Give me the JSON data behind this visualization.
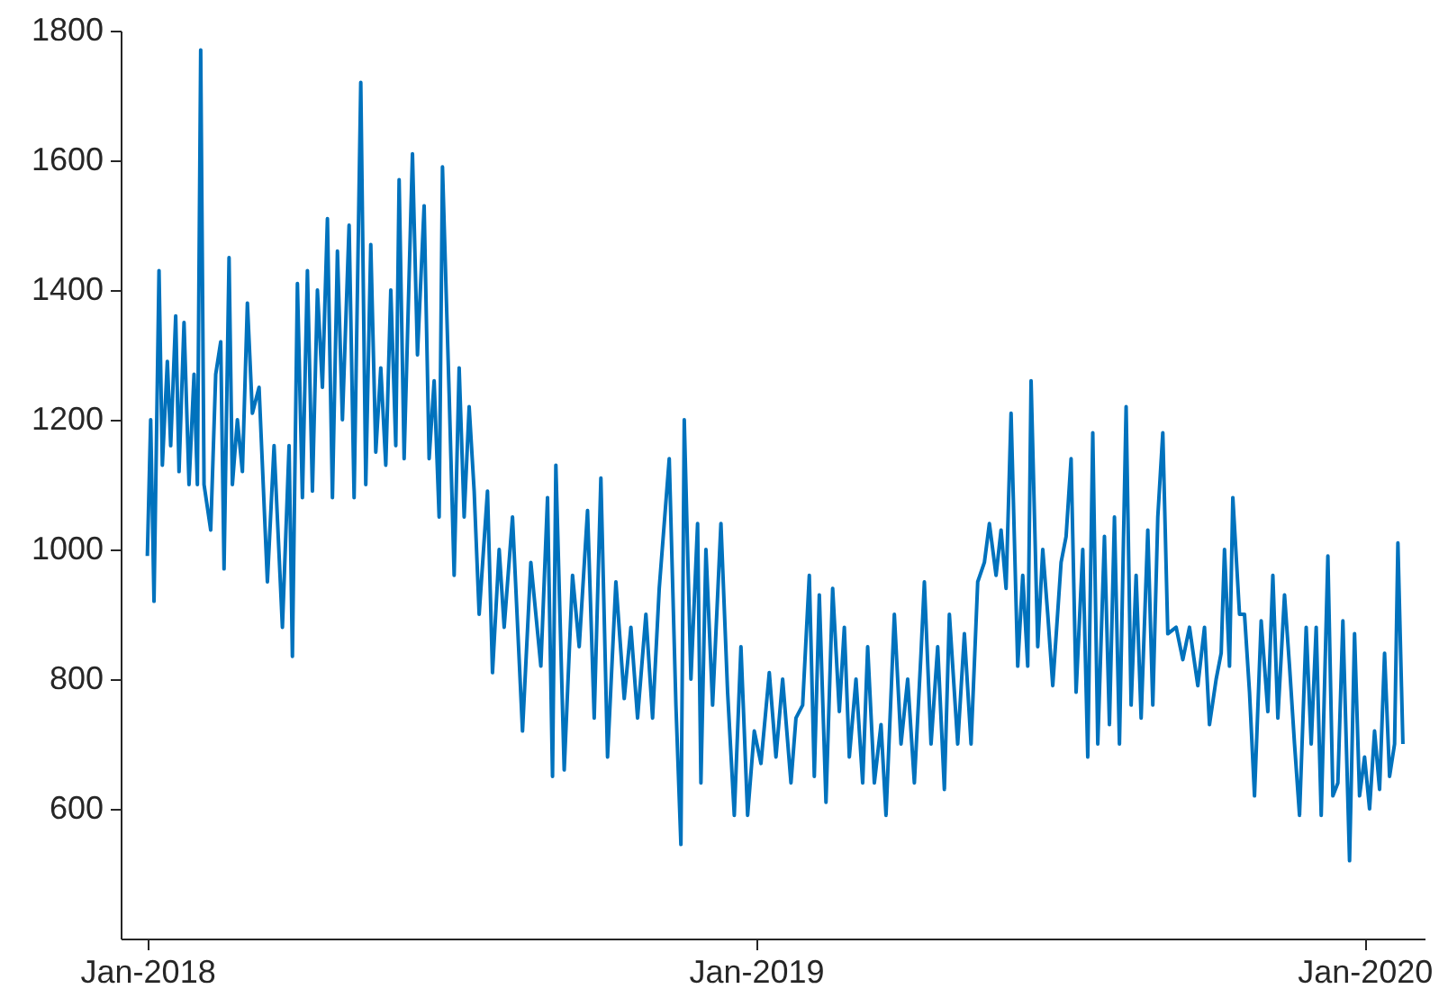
{
  "chart_data": {
    "type": "line",
    "x": [
      "2018-01-01",
      "2018-01-03",
      "2018-01-05",
      "2018-01-08",
      "2018-01-10",
      "2018-01-13",
      "2018-01-15",
      "2018-01-18",
      "2018-01-20",
      "2018-01-23",
      "2018-01-26",
      "2018-01-29",
      "2018-01-31",
      "2018-02-02",
      "2018-02-04",
      "2018-02-08",
      "2018-02-11",
      "2018-02-14",
      "2018-02-16",
      "2018-02-19",
      "2018-02-21",
      "2018-02-24",
      "2018-02-27",
      "2018-03-02",
      "2018-03-05",
      "2018-03-09",
      "2018-03-14",
      "2018-03-18",
      "2018-03-23",
      "2018-03-27",
      "2018-03-29",
      "2018-04-01",
      "2018-04-04",
      "2018-04-07",
      "2018-04-10",
      "2018-04-13",
      "2018-04-16",
      "2018-04-19",
      "2018-04-22",
      "2018-04-25",
      "2018-04-28",
      "2018-05-02",
      "2018-05-05",
      "2018-05-09",
      "2018-05-12",
      "2018-05-15",
      "2018-05-18",
      "2018-05-21",
      "2018-05-24",
      "2018-05-27",
      "2018-05-30",
      "2018-06-01",
      "2018-06-04",
      "2018-06-09",
      "2018-06-12",
      "2018-06-16",
      "2018-06-19",
      "2018-06-22",
      "2018-06-25",
      "2018-06-27",
      "2018-07-01",
      "2018-07-04",
      "2018-07-07",
      "2018-07-10",
      "2018-07-13",
      "2018-07-16",
      "2018-07-19",
      "2018-07-24",
      "2018-07-27",
      "2018-07-31",
      "2018-08-03",
      "2018-08-08",
      "2018-08-14",
      "2018-08-19",
      "2018-08-25",
      "2018-08-29",
      "2018-09-01",
      "2018-09-03",
      "2018-09-08",
      "2018-09-13",
      "2018-09-17",
      "2018-09-22",
      "2018-09-26",
      "2018-09-30",
      "2018-10-04",
      "2018-10-09",
      "2018-10-14",
      "2018-10-18",
      "2018-10-22",
      "2018-10-27",
      "2018-10-31",
      "2018-11-04",
      "2018-11-10",
      "2018-11-14",
      "2018-11-17",
      "2018-11-19",
      "2018-11-23",
      "2018-11-27",
      "2018-11-29",
      "2018-12-02",
      "2018-12-06",
      "2018-12-11",
      "2018-12-15",
      "2018-12-19",
      "2018-12-23",
      "2018-12-27",
      "2018-12-31",
      "2019-01-04",
      "2019-01-09",
      "2019-01-13",
      "2019-01-17",
      "2019-01-22",
      "2019-01-25",
      "2019-01-29",
      "2019-02-02",
      "2019-02-05",
      "2019-02-08",
      "2019-02-12",
      "2019-02-16",
      "2019-02-20",
      "2019-02-23",
      "2019-02-26",
      "2019-03-02",
      "2019-03-06",
      "2019-03-09",
      "2019-03-13",
      "2019-03-17",
      "2019-03-20",
      "2019-03-25",
      "2019-03-29",
      "2019-04-02",
      "2019-04-06",
      "2019-04-10",
      "2019-04-12",
      "2019-04-16",
      "2019-04-20",
      "2019-04-24",
      "2019-04-27",
      "2019-05-02",
      "2019-05-06",
      "2019-05-10",
      "2019-05-14",
      "2019-05-18",
      "2019-05-21",
      "2019-05-25",
      "2019-05-28",
      "2019-05-31",
      "2019-06-03",
      "2019-06-07",
      "2019-06-10",
      "2019-06-13",
      "2019-06-15",
      "2019-06-19",
      "2019-06-22",
      "2019-06-25",
      "2019-06-28",
      "2019-07-03",
      "2019-07-06",
      "2019-07-09",
      "2019-07-12",
      "2019-07-16",
      "2019-07-19",
      "2019-07-22",
      "2019-07-25",
      "2019-07-29",
      "2019-08-01",
      "2019-08-04",
      "2019-08-07",
      "2019-08-11",
      "2019-08-14",
      "2019-08-17",
      "2019-08-20",
      "2019-08-24",
      "2019-08-27",
      "2019-08-30",
      "2019-09-02",
      "2019-09-05",
      "2019-09-10",
      "2019-09-14",
      "2019-09-18",
      "2019-09-23",
      "2019-09-27",
      "2019-09-30",
      "2019-10-04",
      "2019-10-07",
      "2019-10-09",
      "2019-10-12",
      "2019-10-14",
      "2019-10-18",
      "2019-10-21",
      "2019-10-24",
      "2019-10-27",
      "2019-10-31",
      "2019-11-04",
      "2019-11-07",
      "2019-11-10",
      "2019-11-14",
      "2019-11-17",
      "2019-11-20",
      "2019-11-23",
      "2019-11-27",
      "2019-11-30",
      "2019-12-03",
      "2019-12-06",
      "2019-12-10",
      "2019-12-13",
      "2019-12-16",
      "2019-12-19",
      "2019-12-23",
      "2019-12-26",
      "2019-12-29",
      "2020-01-01",
      "2020-01-04",
      "2020-01-07",
      "2020-01-10",
      "2020-01-13",
      "2020-01-16",
      "2020-01-19",
      "2020-01-21",
      "2020-01-24"
    ],
    "series": [
      {
        "color": "#0072bd",
        "values": [
          990,
          1200,
          920,
          1430,
          1130,
          1290,
          1160,
          1360,
          1120,
          1350,
          1100,
          1270,
          1100,
          1770,
          1100,
          1030,
          1270,
          1320,
          970,
          1450,
          1100,
          1200,
          1120,
          1380,
          1210,
          1250,
          950,
          1160,
          880,
          1160,
          835,
          1410,
          1080,
          1430,
          1090,
          1400,
          1250,
          1510,
          1080,
          1460,
          1200,
          1500,
          1080,
          1720,
          1100,
          1470,
          1150,
          1280,
          1130,
          1400,
          1160,
          1570,
          1140,
          1610,
          1300,
          1530,
          1140,
          1260,
          1050,
          1590,
          1240,
          960,
          1280,
          1050,
          1220,
          1090,
          900,
          1090,
          810,
          1000,
          880,
          1050,
          720,
          980,
          820,
          1080,
          650,
          1130,
          660,
          960,
          850,
          1060,
          740,
          1110,
          680,
          950,
          770,
          880,
          740,
          900,
          740,
          940,
          1140,
          760,
          545,
          1200,
          800,
          1040,
          640,
          1000,
          760,
          1040,
          780,
          590,
          850,
          590,
          720,
          670,
          810,
          680,
          800,
          640,
          740,
          760,
          960,
          650,
          930,
          610,
          940,
          750,
          880,
          680,
          800,
          640,
          850,
          640,
          730,
          590,
          900,
          700,
          800,
          640,
          840,
          950,
          700,
          850,
          630,
          900,
          700,
          870,
          700,
          950,
          980,
          1040,
          960,
          1030,
          940,
          1210,
          820,
          960,
          820,
          1260,
          850,
          1000,
          900,
          790,
          980,
          1020,
          1140,
          780,
          1000,
          680,
          1180,
          700,
          1020,
          730,
          1050,
          700,
          1220,
          760,
          960,
          740,
          1030,
          760,
          1050,
          1180,
          870,
          880,
          830,
          880,
          790,
          880,
          730,
          800,
          840,
          1000,
          820,
          1080,
          900,
          900,
          780,
          620,
          890,
          750,
          960,
          740,
          930,
          820,
          700,
          590,
          880,
          700,
          880,
          590,
          990,
          620,
          640,
          890,
          520,
          870,
          620,
          680,
          600,
          720,
          630,
          840,
          650,
          700,
          1010,
          700
        ]
      }
    ],
    "xlim": [
      "2017-12-16",
      "2020-02-06"
    ],
    "xticks": [
      {
        "value": "2018-01-01",
        "label": "Jan-2018"
      },
      {
        "value": "2019-01-01",
        "label": "Jan-2019"
      },
      {
        "value": "2020-01-01",
        "label": "Jan-2020"
      }
    ],
    "ylim": [
      400,
      1800
    ],
    "yticks": [
      600,
      800,
      1000,
      1200,
      1400,
      1600,
      1800
    ],
    "grid": false
  }
}
